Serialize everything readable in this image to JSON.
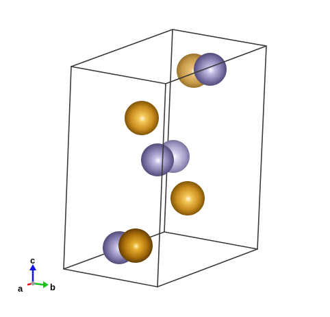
{
  "structure": {
    "elements": [
      {
        "symbol": "gold-atom",
        "color": "#b07d1c",
        "highlight": "#fff3b0"
      },
      {
        "symbol": "violet-atom",
        "color": "#7a72a0",
        "highlight": "#ffffff"
      }
    ]
  },
  "axes": {
    "a": {
      "label": "a",
      "color": "#e01414"
    },
    "b": {
      "label": "b",
      "color": "#18c018"
    },
    "c": {
      "label": "c",
      "color": "#1414e0"
    }
  }
}
